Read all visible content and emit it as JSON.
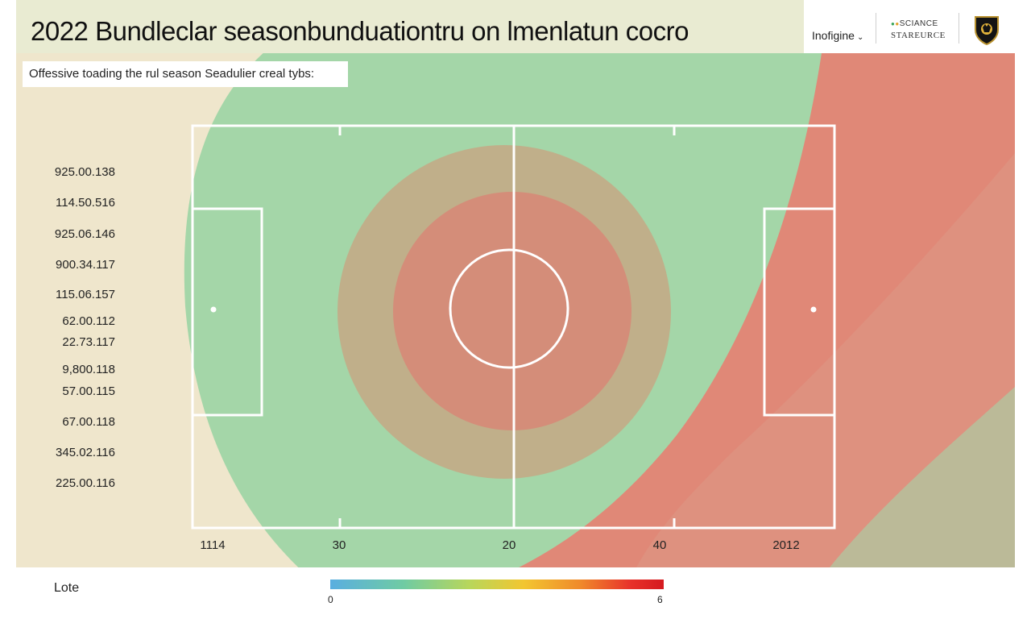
{
  "header": {
    "title": "2022 Bundleclar seasonbunduationtru on lmenlatun cocro",
    "dropdown_label": "Inofigine",
    "brand_line1": "SCIANCE",
    "brand_line2": "STAREURCE",
    "crest_icon": "club-crest-icon"
  },
  "subtitle": "Offessive toading the rul season Seadulier creal tybs:",
  "colors": {
    "header_bg": "#e9ebd2",
    "background_left": "#efe6cc",
    "zone_green": "#a4d6a8",
    "zone_tan": "#c0af8a",
    "zone_red": "#e08877",
    "pitch_lines": "#ffffff"
  },
  "chart_data": {
    "type": "heatmap",
    "title": "2022 Bundleclar seasonbunduationtru on lmenlatun cocro",
    "subtitle": "Offessive toading the rul season Seadulier creal tybs:",
    "row_labels": [
      "925.00.138",
      "114.50.516",
      "925.06.146",
      "900.34.117",
      "115.06.157",
      "62.00.112",
      "22.73.117",
      "9,800.118",
      "57.00.115",
      "67.00.118",
      "345.02.116",
      "225.00.116"
    ],
    "x_tick_labels": [
      "1114",
      "30",
      "20",
      "40",
      "2012"
    ],
    "legend": {
      "label": "Lote",
      "min_label": "0",
      "max_label": "6",
      "placement": "bottom-center"
    },
    "zones": [
      "green",
      "tan ring",
      "red center",
      "red right wedge"
    ]
  }
}
